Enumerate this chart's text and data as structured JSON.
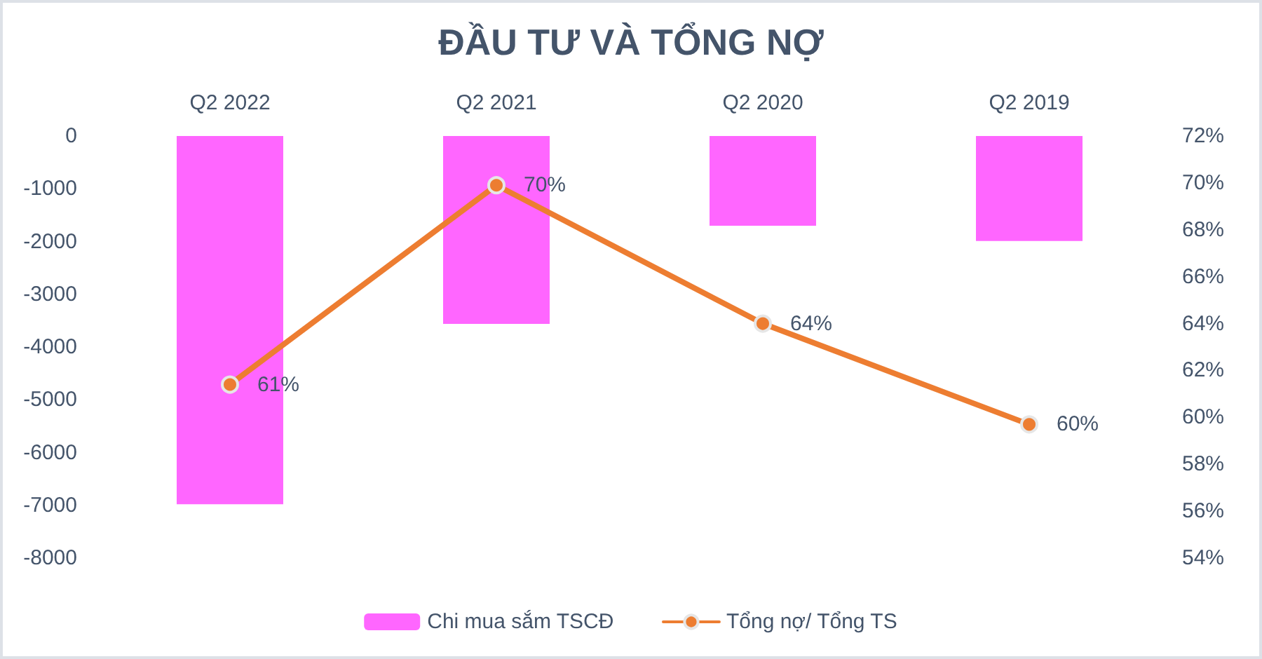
{
  "chart_data": {
    "type": "bar",
    "title": "ĐẦU TƯ VÀ TỔNG NỢ",
    "categories": [
      "Q2 2022",
      "Q2 2021",
      "Q2 2020",
      "Q2 2019"
    ],
    "series": [
      {
        "name": "Chi mua sắm TSCĐ",
        "color": "#ff66ff",
        "values": [
          -6980,
          -3560,
          -1700,
          -1990
        ]
      },
      {
        "name": "Tổng nợ/ Tổng TS",
        "type": "line",
        "axis": "y2",
        "color": "#ed7d31",
        "values": [
          61.4,
          69.9,
          64.0,
          59.7
        ],
        "value_labels": [
          "61%",
          "70%",
          "64%",
          "60%"
        ]
      }
    ],
    "ylim": [
      -8000,
      0
    ],
    "yticks": [
      0,
      -1000,
      -2000,
      -3000,
      -4000,
      -5000,
      -6000,
      -7000,
      -8000
    ],
    "y2lim": [
      54,
      72
    ],
    "y2ticks": [
      {
        "value": 54,
        "label": "54%"
      },
      {
        "value": 56,
        "label": "56%"
      },
      {
        "value": 58,
        "label": "58%"
      },
      {
        "value": 60,
        "label": "60%"
      },
      {
        "value": 62,
        "label": "62%"
      },
      {
        "value": 64,
        "label": "64%"
      },
      {
        "value": 66,
        "label": "66%"
      },
      {
        "value": 68,
        "label": "68%"
      },
      {
        "value": 70,
        "label": "70%"
      },
      {
        "value": 72,
        "label": "72%"
      }
    ],
    "grid": false,
    "legend": "bottom",
    "marker": "circle",
    "line_style": "solid"
  }
}
